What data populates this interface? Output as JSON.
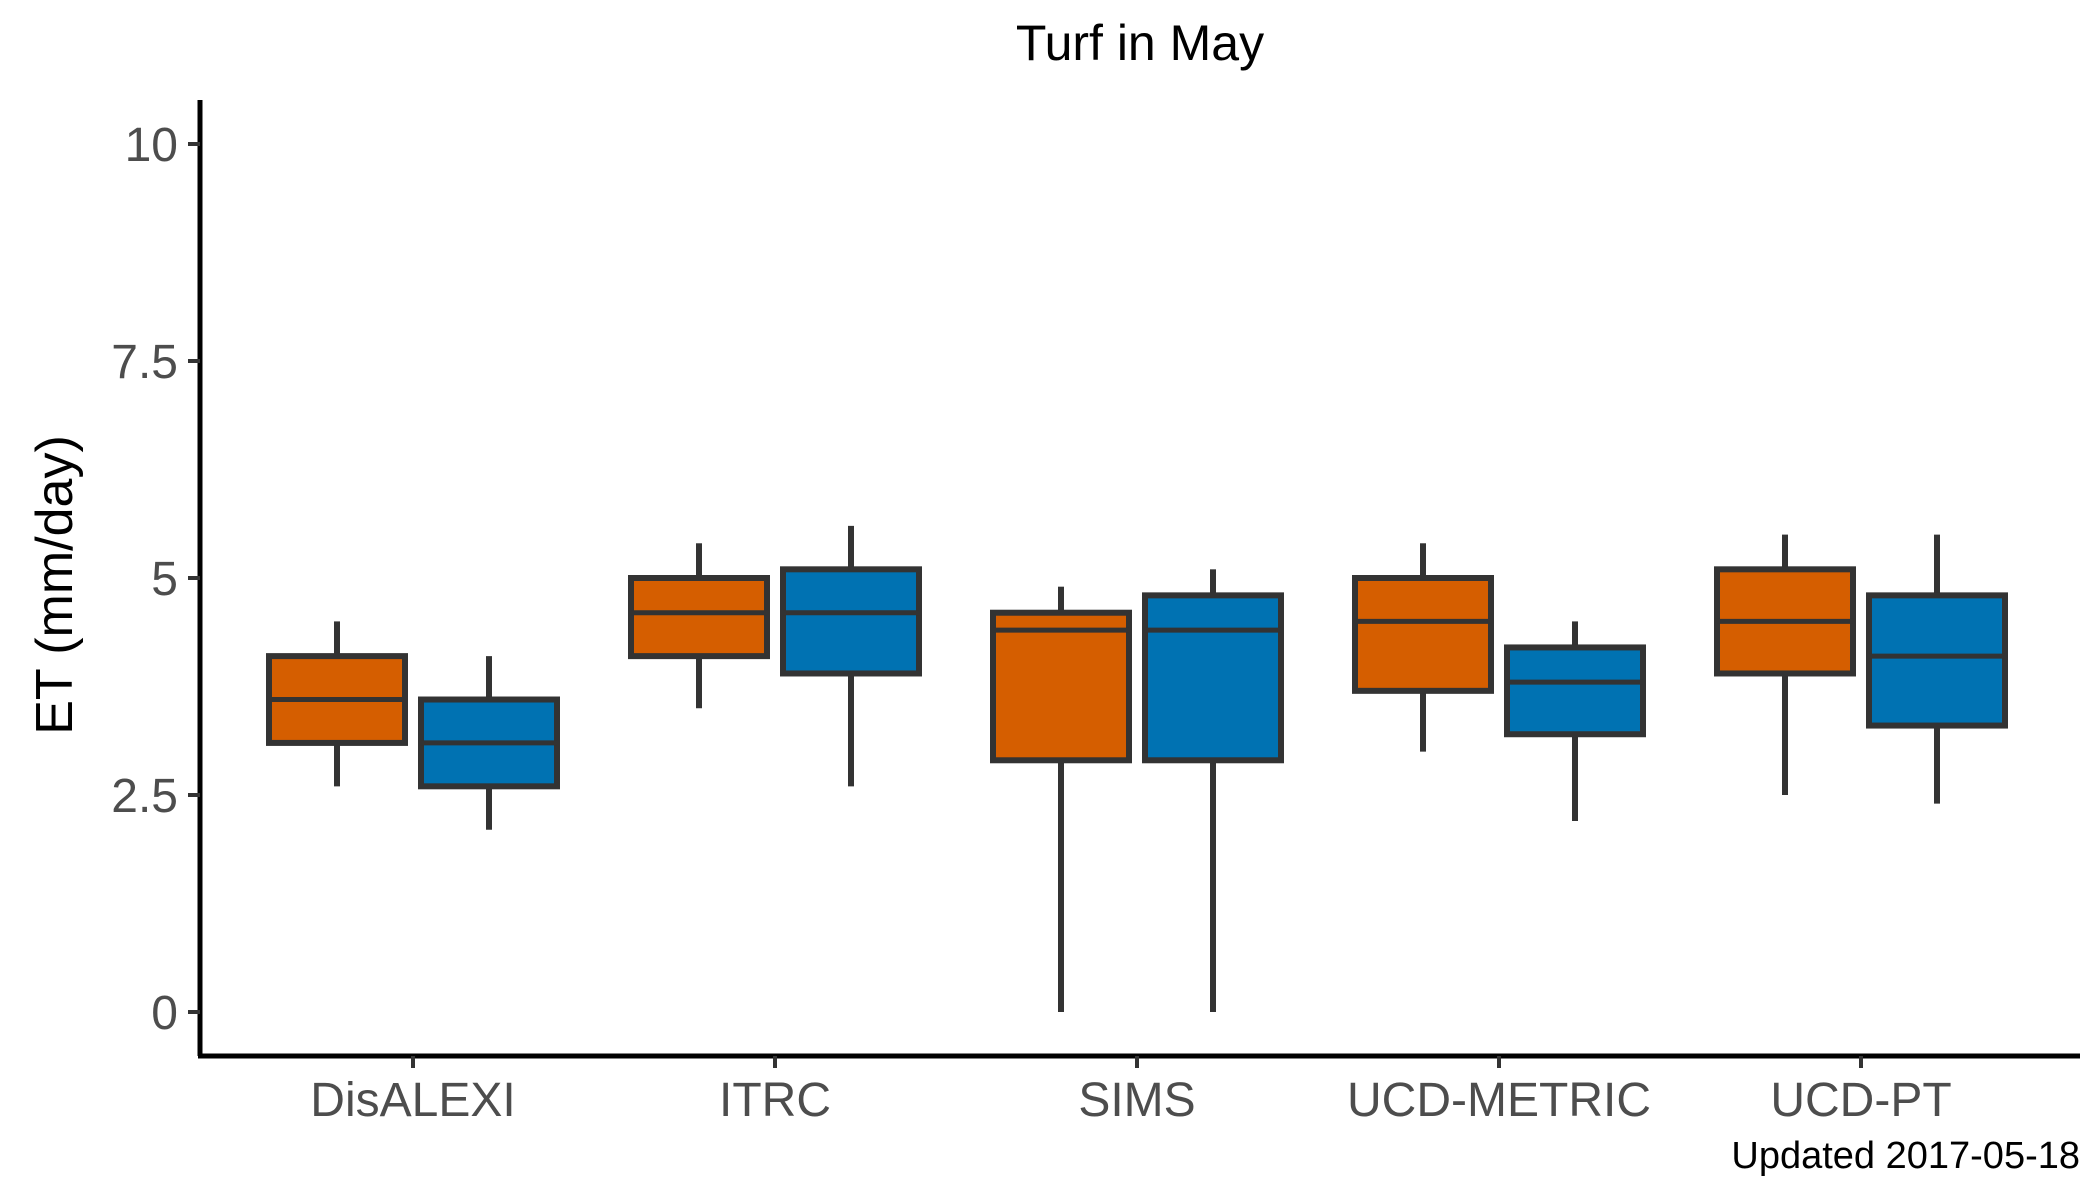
{
  "chart_data": {
    "type": "boxplot",
    "title": "Turf in May",
    "xlabel": "",
    "ylabel": "ET (mm/day)",
    "caption": "Updated  2017-05-18",
    "ylim": [
      -0.5,
      10.5
    ],
    "yticks": [
      0,
      2.5,
      5,
      7.5,
      10
    ],
    "ytick_labels": [
      "0",
      "2.5",
      "5",
      "7.5",
      "10"
    ],
    "grid": false,
    "legend": "none",
    "categories": [
      "DisALEXI",
      "ITRC",
      "SIMS",
      "UCD-METRIC",
      "UCD-PT"
    ],
    "series": [
      {
        "color": "#D55E00",
        "boxes": [
          {
            "whisker_low": 2.6,
            "q1": 3.1,
            "median": 3.6,
            "q3": 4.1,
            "whisker_high": 4.5
          },
          {
            "whisker_low": 3.5,
            "q1": 4.1,
            "median": 4.6,
            "q3": 5.0,
            "whisker_high": 5.4
          },
          {
            "whisker_low": 0.0,
            "q1": 2.9,
            "median": 4.4,
            "q3": 4.6,
            "whisker_high": 4.9
          },
          {
            "whisker_low": 3.0,
            "q1": 3.7,
            "median": 4.5,
            "q3": 5.0,
            "whisker_high": 5.4
          },
          {
            "whisker_low": 2.5,
            "q1": 3.9,
            "median": 4.5,
            "q3": 5.1,
            "whisker_high": 5.5
          }
        ]
      },
      {
        "color": "#0072B2",
        "boxes": [
          {
            "whisker_low": 2.1,
            "q1": 2.6,
            "median": 3.1,
            "q3": 3.6,
            "whisker_high": 4.1
          },
          {
            "whisker_low": 2.6,
            "q1": 3.9,
            "median": 4.6,
            "q3": 5.1,
            "whisker_high": 5.6
          },
          {
            "whisker_low": 0.0,
            "q1": 2.9,
            "median": 4.4,
            "q3": 4.8,
            "whisker_high": 5.1
          },
          {
            "whisker_low": 2.2,
            "q1": 3.2,
            "median": 3.8,
            "q3": 4.2,
            "whisker_high": 4.5
          },
          {
            "whisker_low": 2.4,
            "q1": 3.3,
            "median": 4.1,
            "q3": 4.8,
            "whisker_high": 5.5
          }
        ]
      }
    ]
  }
}
